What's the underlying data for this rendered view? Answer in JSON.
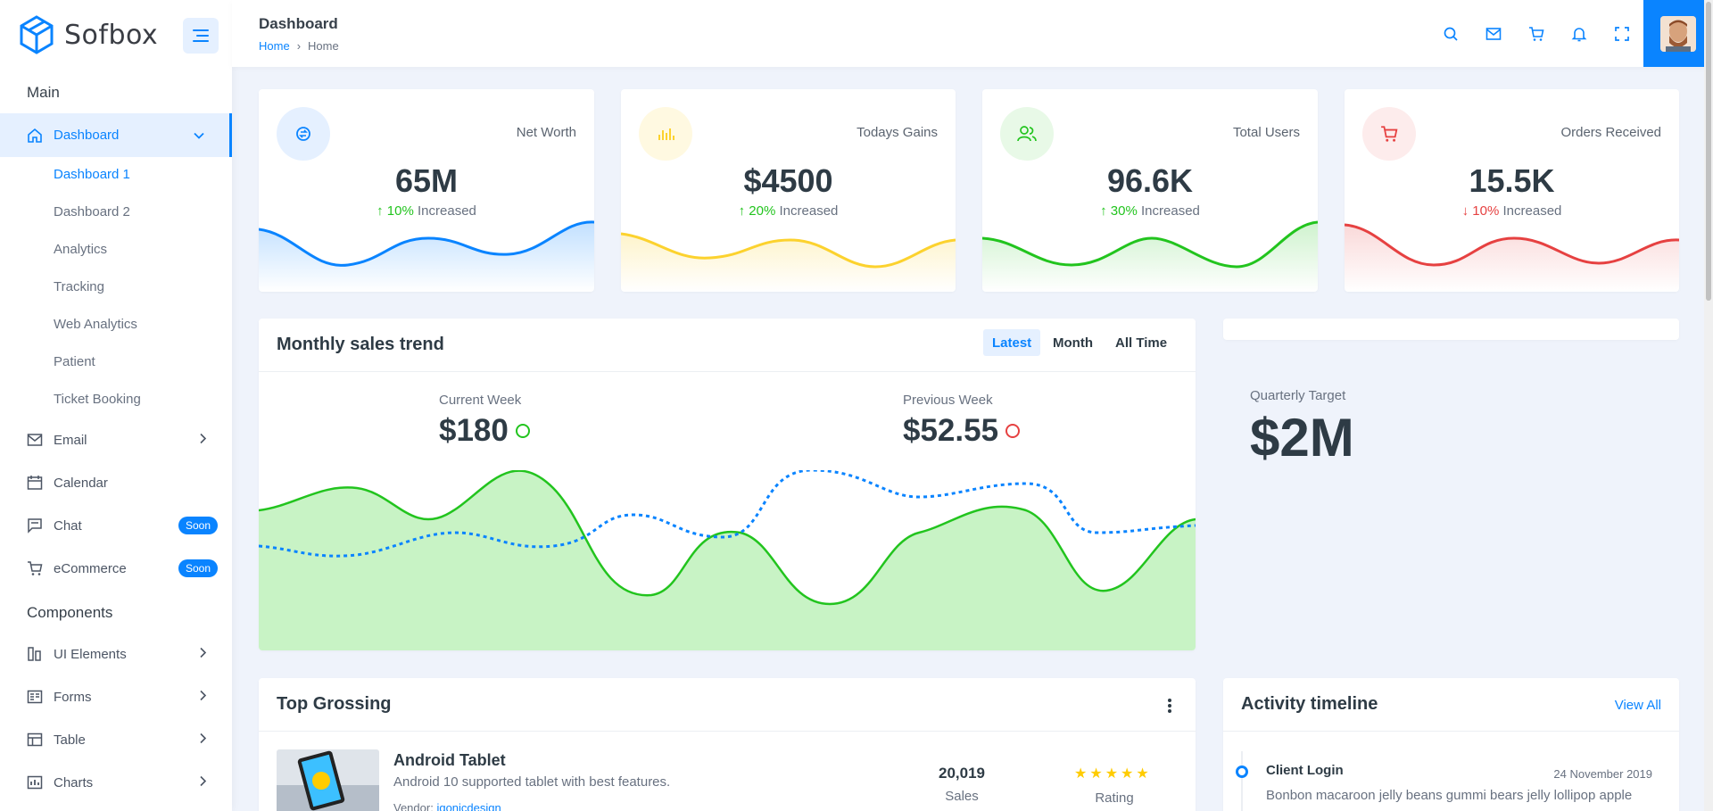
{
  "brand": {
    "name": "Sofbox"
  },
  "sidebar": {
    "section_main": "Main",
    "section_components": "Components",
    "dashboard": {
      "label": "Dashboard",
      "subs": [
        "Dashboard 1",
        "Dashboard 2",
        "Analytics",
        "Tracking",
        "Web Analytics",
        "Patient",
        "Ticket Booking"
      ]
    },
    "items": [
      {
        "label": "Email"
      },
      {
        "label": "Calendar"
      },
      {
        "label": "Chat",
        "badge": "Soon"
      },
      {
        "label": "eCommerce",
        "badge": "Soon"
      }
    ],
    "components": [
      {
        "label": "UI Elements"
      },
      {
        "label": "Forms"
      },
      {
        "label": "Table"
      },
      {
        "label": "Charts"
      }
    ]
  },
  "header": {
    "title": "Dashboard",
    "breadcrumb": [
      "Home",
      "Home"
    ],
    "breadcrumb_sep": "›"
  },
  "stats": [
    {
      "label": "Net Worth",
      "value": "65M",
      "pct": "10%",
      "text": "Increased",
      "direction": "up",
      "color": "#0a84ff",
      "bg": "#e5f0ff",
      "icon": "money-exchange-icon"
    },
    {
      "label": "Todays Gains",
      "value": "$4500",
      "pct": "20%",
      "text": "Increased",
      "direction": "up",
      "color": "#fcd22e",
      "bg": "#fff9e1",
      "icon": "bar-chart-icon"
    },
    {
      "label": "Total Users",
      "value": "96.6K",
      "pct": "30%",
      "text": "Increased",
      "direction": "up",
      "color": "#22c41e",
      "bg": "#e8f9e7",
      "icon": "users-icon"
    },
    {
      "label": "Orders Received",
      "value": "15.5K",
      "pct": "10%",
      "text": "Increased",
      "direction": "down",
      "color": "#e64141",
      "bg": "#fdecec",
      "icon": "cart-icon"
    }
  ],
  "sales": {
    "title": "Monthly sales trend",
    "tabs": [
      "Latest",
      "Month",
      "All Time"
    ],
    "current_label": "Current Week",
    "current_value": "$180",
    "previous_label": "Previous Week",
    "previous_value": "$52.55"
  },
  "quarter": {
    "label": "Quarterly Target",
    "value": "$2M"
  },
  "grossing": {
    "title": "Top Grossing",
    "product": {
      "name": "Android Tablet",
      "desc": "Android 10 supported tablet with best features.",
      "vendor_label": "Vendor:",
      "vendor": "iqonicdesign",
      "sales_value": "20,019",
      "sales_label": "Sales",
      "rating_label": "Rating",
      "rating": 5
    }
  },
  "timeline": {
    "title": "Activity timeline",
    "view_all": "View All",
    "items": [
      {
        "title": "Client Login",
        "date": "24 November 2019",
        "text": "Bonbon macaroon jelly beans gummi bears jelly lollipop apple"
      }
    ]
  },
  "colors": {
    "accent": "#0a84ff",
    "green": "#22c41e",
    "red": "#e64141",
    "yellow": "#fcd22e"
  }
}
